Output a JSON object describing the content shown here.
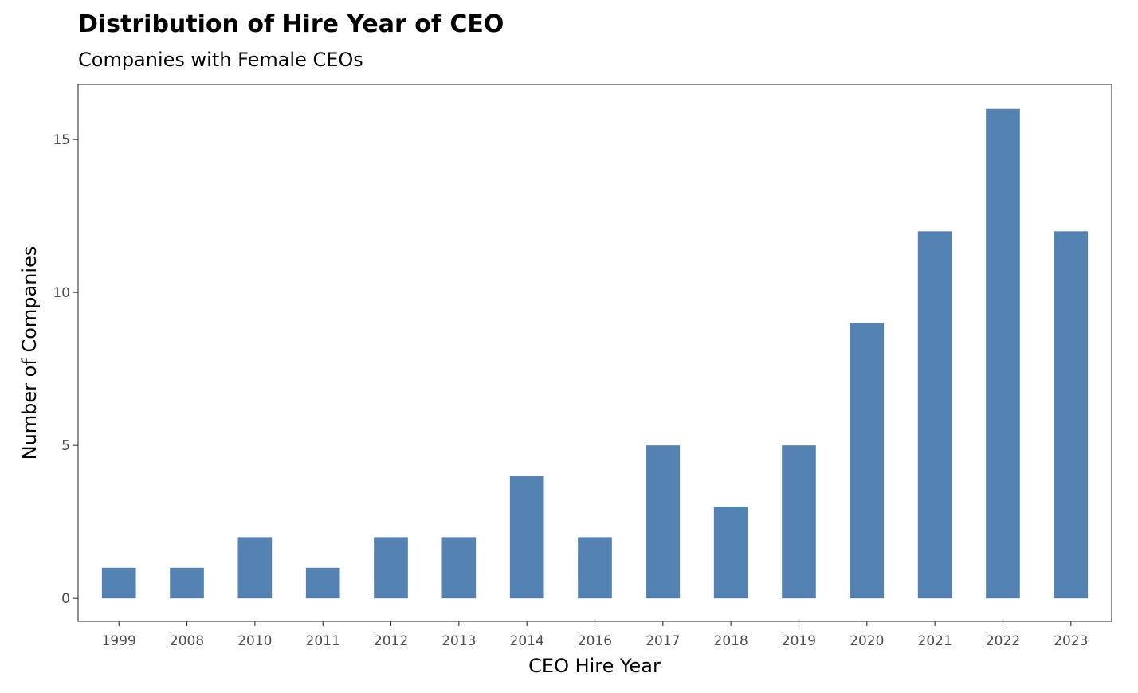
{
  "chart_data": {
    "type": "bar",
    "title": "Distribution of Hire Year of CEO",
    "subtitle": "Companies with Female CEOs",
    "xlabel": "CEO Hire Year",
    "ylabel": "Number of Companies",
    "categories": [
      "1999",
      "2008",
      "2010",
      "2011",
      "2012",
      "2013",
      "2014",
      "2016",
      "2017",
      "2018",
      "2019",
      "2020",
      "2021",
      "2022",
      "2023"
    ],
    "values": [
      1,
      1,
      2,
      1,
      2,
      2,
      4,
      2,
      5,
      3,
      5,
      9,
      12,
      16,
      12
    ],
    "yticks": [
      0,
      5,
      10,
      15
    ],
    "ylim": [
      -0.75,
      16.8
    ],
    "grid": false,
    "bar_color": "#5482b2"
  }
}
